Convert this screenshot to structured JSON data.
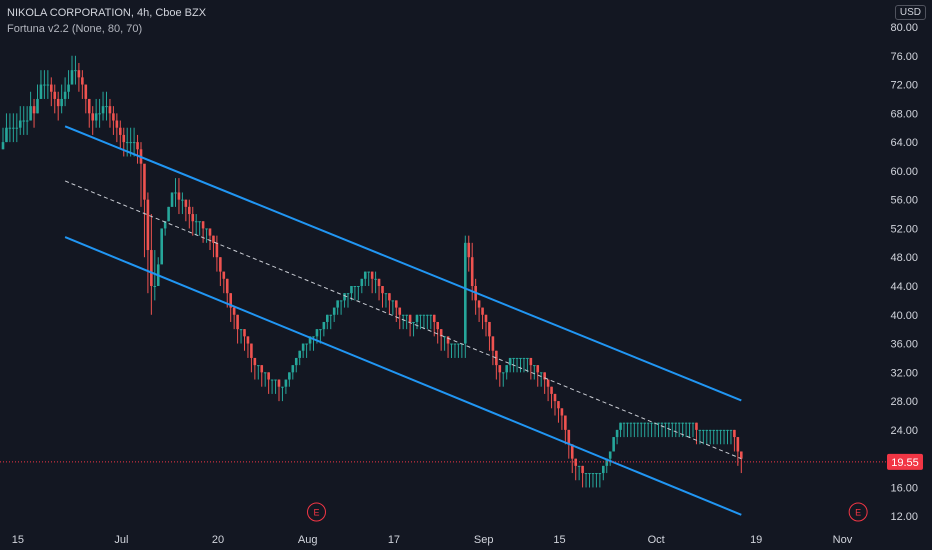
{
  "header": {
    "symbol_line": "NIKOLA CORPORATION, 4h, Cboe BZX",
    "indicator_line": "Fortuna v2.2 (None, 80, 70)"
  },
  "currency": "USD",
  "last_price_label": "19.55",
  "event_marker_label": "E",
  "colors": {
    "background": "#131722",
    "up": "#26a69a",
    "down": "#ef5350",
    "channel": "#2196f3",
    "midline": "#c8cbd2",
    "price_tag": "#f23645"
  },
  "chart_data": {
    "type": "candlestick",
    "title": "NIKOLA CORPORATION, 4h, Cboe BZX",
    "y_tick_labels": [
      "80.00",
      "76.00",
      "72.00",
      "68.00",
      "64.00",
      "60.00",
      "56.00",
      "52.00",
      "48.00",
      "44.00",
      "40.00",
      "36.00",
      "32.00",
      "28.00",
      "24.00",
      "20.00",
      "16.00",
      "12.00"
    ],
    "x_tick_labels": [
      "15",
      "Jul",
      "20",
      "Aug",
      "17",
      "Sep",
      "15",
      "Oct",
      "19",
      "Nov"
    ],
    "ylim": [
      10.5,
      82.5
    ],
    "grid": false,
    "last_price": 19.55,
    "bar_count": 215,
    "closes": [
      64,
      66,
      66,
      66,
      66,
      67,
      67,
      67,
      69,
      68,
      70,
      72,
      72,
      72,
      71,
      70,
      69,
      70,
      71,
      72,
      74,
      74,
      73,
      72,
      70,
      68,
      67,
      68,
      68,
      69,
      69,
      68,
      67,
      66,
      65,
      64,
      64,
      64,
      64,
      63,
      61,
      56,
      49,
      44,
      44,
      47,
      52,
      53,
      55,
      57,
      57,
      56,
      56,
      55,
      54,
      53,
      53,
      53,
      52,
      52,
      51,
      50,
      48,
      46,
      45,
      43,
      41,
      40,
      38,
      38,
      37,
      36,
      34,
      33,
      33,
      32,
      32,
      31,
      31,
      31,
      30,
      30,
      31,
      32,
      33,
      34,
      35,
      36,
      36,
      37,
      37,
      38,
      38,
      39,
      40,
      40,
      41,
      42,
      42,
      43,
      43,
      44,
      44,
      44,
      45,
      46,
      46,
      45,
      45,
      44,
      43,
      43,
      42,
      42,
      41,
      40,
      40,
      40,
      39,
      39,
      40,
      40,
      40,
      40,
      40,
      39,
      38,
      37,
      37,
      36,
      36,
      36,
      36,
      36,
      50,
      48,
      44,
      42,
      41,
      40,
      39,
      37,
      35,
      33,
      32,
      32,
      33,
      34,
      34,
      34,
      34,
      34,
      34,
      33,
      33,
      32,
      32,
      31,
      30,
      29,
      28,
      27,
      26,
      24,
      22,
      20,
      19,
      19,
      18,
      18,
      18,
      18,
      18,
      18,
      19,
      20,
      21,
      23,
      24,
      25,
      25,
      25,
      25,
      25,
      25,
      25,
      25,
      25,
      25,
      25,
      25,
      25,
      25,
      25,
      25,
      25,
      25,
      25,
      25,
      25,
      25,
      24,
      24,
      24,
      24,
      24,
      24,
      24,
      24,
      24,
      24,
      24,
      23,
      21,
      20
    ],
    "highs": [
      66,
      68,
      68,
      68,
      68,
      69,
      69,
      69,
      71,
      70,
      72,
      74,
      74,
      74,
      73,
      72,
      71,
      72,
      73,
      74,
      76,
      76,
      75,
      74,
      72,
      70,
      69,
      70,
      70,
      71,
      71,
      70,
      69,
      68,
      67,
      66,
      66,
      66,
      66,
      65,
      64,
      60,
      57,
      54,
      49,
      48,
      52,
      53,
      55,
      57,
      59,
      59,
      57,
      56,
      56,
      55,
      54,
      53,
      53,
      52,
      52,
      51,
      51,
      48,
      46,
      45,
      43,
      41,
      40,
      38,
      38,
      37,
      36,
      34,
      33,
      33,
      32,
      32,
      31,
      31,
      31,
      30,
      31,
      32,
      33,
      34,
      35,
      36,
      36,
      37,
      37,
      38,
      38,
      39,
      40,
      40,
      41,
      42,
      42,
      43,
      43,
      44,
      44,
      44,
      45,
      46,
      46,
      46,
      46,
      45,
      44,
      43,
      43,
      42,
      42,
      41,
      40,
      40,
      40,
      39,
      40,
      40,
      40,
      40,
      40,
      40,
      39,
      38,
      37,
      37,
      36,
      36,
      36,
      36,
      51,
      51,
      50,
      45,
      42,
      41,
      40,
      39,
      37,
      35,
      33,
      32,
      33,
      34,
      34,
      34,
      34,
      34,
      34,
      34,
      33,
      33,
      32,
      32,
      31,
      30,
      29,
      28,
      27,
      26,
      24,
      22,
      20,
      19,
      19,
      18,
      18,
      18,
      18,
      18,
      19,
      20,
      21,
      23,
      24,
      25,
      25,
      25,
      25,
      25,
      25,
      25,
      25,
      25,
      25,
      25,
      25,
      25,
      25,
      25,
      25,
      25,
      25,
      25,
      25,
      25,
      25,
      25,
      24,
      24,
      24,
      24,
      24,
      24,
      24,
      24,
      24,
      24,
      24,
      23,
      21
    ],
    "lows": [
      63,
      64,
      64,
      64,
      64,
      65,
      65,
      65,
      67,
      66,
      68,
      70,
      70,
      70,
      69,
      68,
      67,
      68,
      69,
      70,
      72,
      72,
      71,
      70,
      68,
      66,
      65,
      66,
      66,
      67,
      67,
      66,
      65,
      64,
      63,
      62,
      62,
      62,
      62,
      61,
      55,
      48,
      43,
      40,
      42,
      45,
      50,
      51,
      53,
      55,
      55,
      54,
      54,
      53,
      52,
      51,
      51,
      51,
      50,
      50,
      49,
      48,
      46,
      44,
      43,
      41,
      39,
      38,
      36,
      36,
      35,
      34,
      32,
      31,
      31,
      30,
      30,
      29,
      29,
      29,
      28,
      28,
      29,
      30,
      31,
      32,
      33,
      34,
      34,
      35,
      35,
      36,
      36,
      37,
      38,
      38,
      39,
      40,
      40,
      41,
      41,
      42,
      42,
      42,
      43,
      44,
      44,
      43,
      43,
      42,
      41,
      41,
      40,
      40,
      39,
      38,
      38,
      38,
      37,
      37,
      38,
      38,
      38,
      38,
      38,
      37,
      36,
      35,
      35,
      34,
      34,
      34,
      34,
      34,
      34,
      46,
      42,
      40,
      39,
      38,
      37,
      35,
      33,
      31,
      30,
      30,
      31,
      32,
      32,
      32,
      32,
      32,
      32,
      31,
      31,
      30,
      30,
      29,
      28,
      27,
      26,
      25,
      24,
      22,
      20,
      18,
      17,
      17,
      16,
      16,
      16,
      16,
      16,
      16,
      17,
      18,
      19,
      21,
      22,
      23,
      23,
      23,
      23,
      23,
      23,
      23,
      23,
      23,
      23,
      23,
      23,
      23,
      23,
      23,
      23,
      23,
      23,
      23,
      23,
      23,
      23,
      22,
      22,
      22,
      22,
      22,
      22,
      22,
      22,
      22,
      22,
      22,
      21,
      19,
      18
    ],
    "channel_upper": {
      "from": {
        "bar": 18,
        "price": 66.2
      },
      "to": {
        "bar": 214,
        "price": 28.1
      }
    },
    "channel_middle": {
      "from": {
        "bar": 18,
        "price": 58.6
      },
      "to": {
        "bar": 214,
        "price": 20.0
      }
    },
    "channel_lower": {
      "from": {
        "bar": 18,
        "price": 50.8
      },
      "to": {
        "bar": 214,
        "price": 12.2
      }
    },
    "events": [
      {
        "bar": 90,
        "label": "E"
      },
      {
        "bar": 247,
        "label": "E"
      }
    ]
  }
}
